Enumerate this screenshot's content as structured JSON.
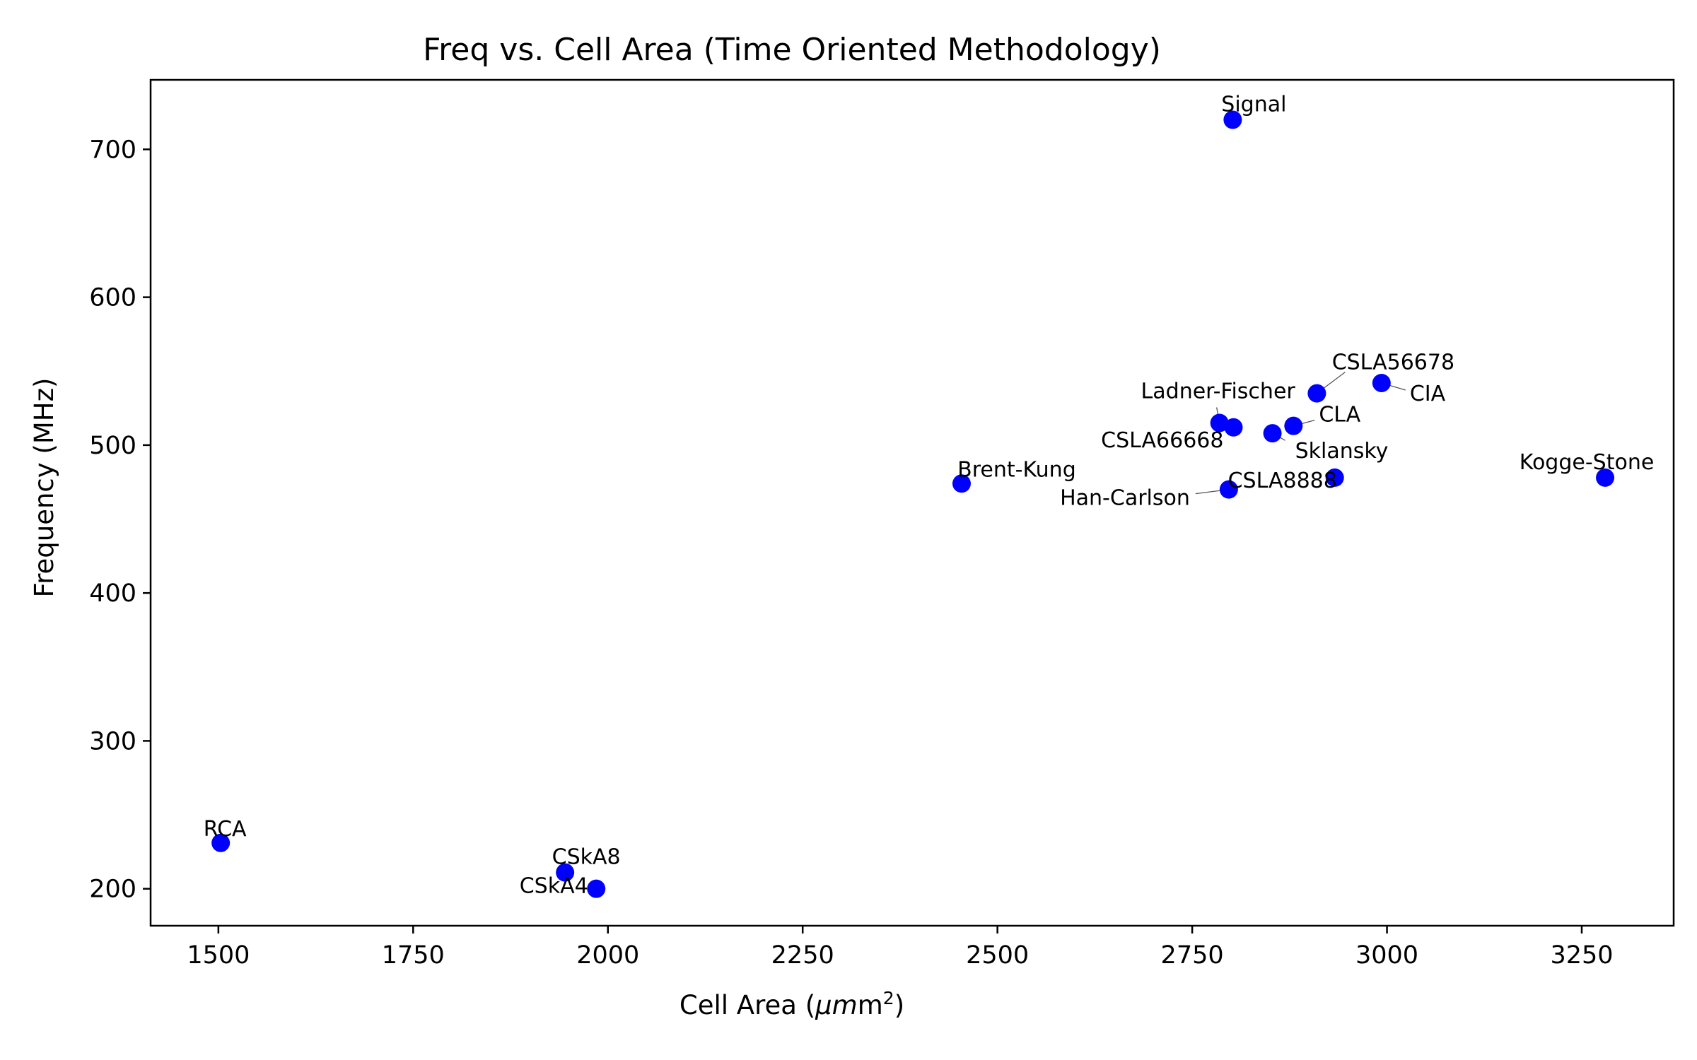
{
  "chart_data": {
    "type": "scatter",
    "title": "Freq vs. Cell Area (Time Oriented Methodology)",
    "xlabel": "Cell Area (",
    "xlabel_unit": "μm",
    "xlabel_sup": "2",
    "xlabel_close": ")",
    "ylabel": "Frequency (MHz)",
    "xlim": [
      1413,
      3368
    ],
    "ylim": [
      175,
      747
    ],
    "xticks": [
      1500,
      1750,
      2000,
      2250,
      2500,
      2750,
      3000,
      3250
    ],
    "yticks": [
      200,
      300,
      400,
      500,
      600,
      700
    ],
    "grid": false,
    "marker_color": "#0000ff",
    "points": [
      {
        "label": "Signal",
        "x": 2802,
        "y": 720
      },
      {
        "label": "CSLA56678",
        "x": 2910,
        "y": 535
      },
      {
        "label": "CIA",
        "x": 2993,
        "y": 542
      },
      {
        "label": "Ladner-Fischer",
        "x": 2785,
        "y": 515
      },
      {
        "label": "CSLA66668",
        "x": 2803,
        "y": 512
      },
      {
        "label": "CLA",
        "x": 2880,
        "y": 513
      },
      {
        "label": "Sklansky",
        "x": 2853,
        "y": 508
      },
      {
        "label": "Brent-Kung",
        "x": 2454,
        "y": 474
      },
      {
        "label": "CSLA8888",
        "x": 2933,
        "y": 478
      },
      {
        "label": "Han-Carlson",
        "x": 2797,
        "y": 470
      },
      {
        "label": "Kogge-Stone",
        "x": 3280,
        "y": 478
      },
      {
        "label": "RCA",
        "x": 1503,
        "y": 231
      },
      {
        "label": "CSkA8",
        "x": 1945,
        "y": 211
      },
      {
        "label": "CSkA4",
        "x": 1985,
        "y": 200
      }
    ]
  }
}
